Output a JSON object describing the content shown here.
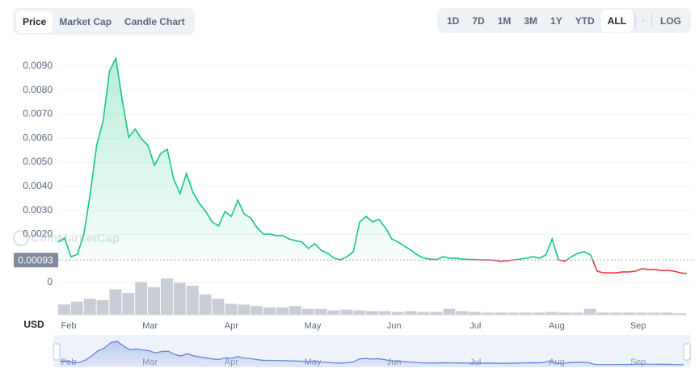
{
  "tabs": [
    {
      "label": "Price",
      "active": true
    },
    {
      "label": "Market Cap",
      "active": false
    },
    {
      "label": "Candle Chart",
      "active": false
    }
  ],
  "ranges": [
    "1D",
    "7D",
    "1M",
    "3M",
    "1Y",
    "YTD",
    "ALL"
  ],
  "active_range": 6,
  "log_button": "LOG",
  "chart_data": {
    "type": "line",
    "watermark": "CoinMarketCap",
    "currency": "USD",
    "x_labels": [
      "Feb",
      "Mar",
      "Apr",
      "May",
      "Jun",
      "Jul",
      "Aug",
      "Sep"
    ],
    "ylim": [
      0,
      0.0099
    ],
    "yticks": [
      0,
      {
        "value": 0.002,
        "label": "0.0020"
      },
      {
        "value": 0.003,
        "label": "0.0030"
      },
      {
        "value": 0.004,
        "label": "0.0040"
      },
      {
        "value": 0.005,
        "label": "0.0050"
      },
      {
        "value": 0.006,
        "label": "0.0060"
      },
      {
        "value": 0.007,
        "label": "0.0070"
      },
      {
        "value": 0.008,
        "label": "0.0080"
      },
      {
        "value": 0.009,
        "label": "0.0090"
      }
    ],
    "grid": true,
    "baseline": {
      "value": 0.00093,
      "label": "0.00093"
    },
    "up_color": "#16c784",
    "down_color": "#ea3943",
    "values": [
      0.00168,
      0.00185,
      0.00107,
      0.00117,
      0.00201,
      0.00369,
      0.0057,
      0.00671,
      0.00879,
      0.00933,
      0.00755,
      0.00604,
      0.00638,
      0.00597,
      0.0057,
      0.00487,
      0.00537,
      0.00554,
      0.0043,
      0.00369,
      0.00453,
      0.00376,
      0.00329,
      0.00295,
      0.00252,
      0.00235,
      0.00295,
      0.00275,
      0.00342,
      0.00285,
      0.00268,
      0.00228,
      0.00201,
      0.00201,
      0.00195,
      0.00195,
      0.00181,
      0.00174,
      0.00168,
      0.00141,
      0.00161,
      0.00134,
      0.00121,
      0.00101,
      0.00094,
      0.00107,
      0.00128,
      0.00252,
      0.00275,
      0.00252,
      0.00262,
      0.00228,
      0.00181,
      0.00168,
      0.00151,
      0.00134,
      0.00114,
      0.00101,
      0.00097,
      0.00095,
      0.00107,
      0.00101,
      0.00101,
      0.00097,
      0.00096,
      0.00095,
      0.00094,
      0.00094,
      0.00092,
      0.00088,
      0.0009,
      0.00094,
      0.00097,
      0.00101,
      0.00107,
      0.00101,
      0.00114,
      0.00181,
      0.00094,
      0.00088,
      0.00107,
      0.00121,
      0.00128,
      0.00114,
      0.00047,
      0.0004,
      0.0004,
      0.0004,
      0.00044,
      0.00044,
      0.00047,
      0.00057,
      0.00054,
      0.00054,
      0.0005,
      0.0005,
      0.00047,
      0.0004,
      0.00037
    ],
    "volume": {
      "color": "#c9ced6",
      "values": [
        14,
        18,
        22,
        20,
        35,
        30,
        45,
        38,
        50,
        44,
        40,
        28,
        22,
        15,
        14,
        12,
        10,
        10,
        12,
        8,
        8,
        6,
        7,
        6,
        5,
        5,
        4,
        5,
        4,
        4,
        8,
        5,
        4,
        3,
        3,
        3,
        3,
        3,
        4,
        3,
        3,
        8,
        3,
        3,
        3,
        3,
        3,
        3,
        2
      ]
    },
    "navigator_color": "#5b7fd6"
  }
}
